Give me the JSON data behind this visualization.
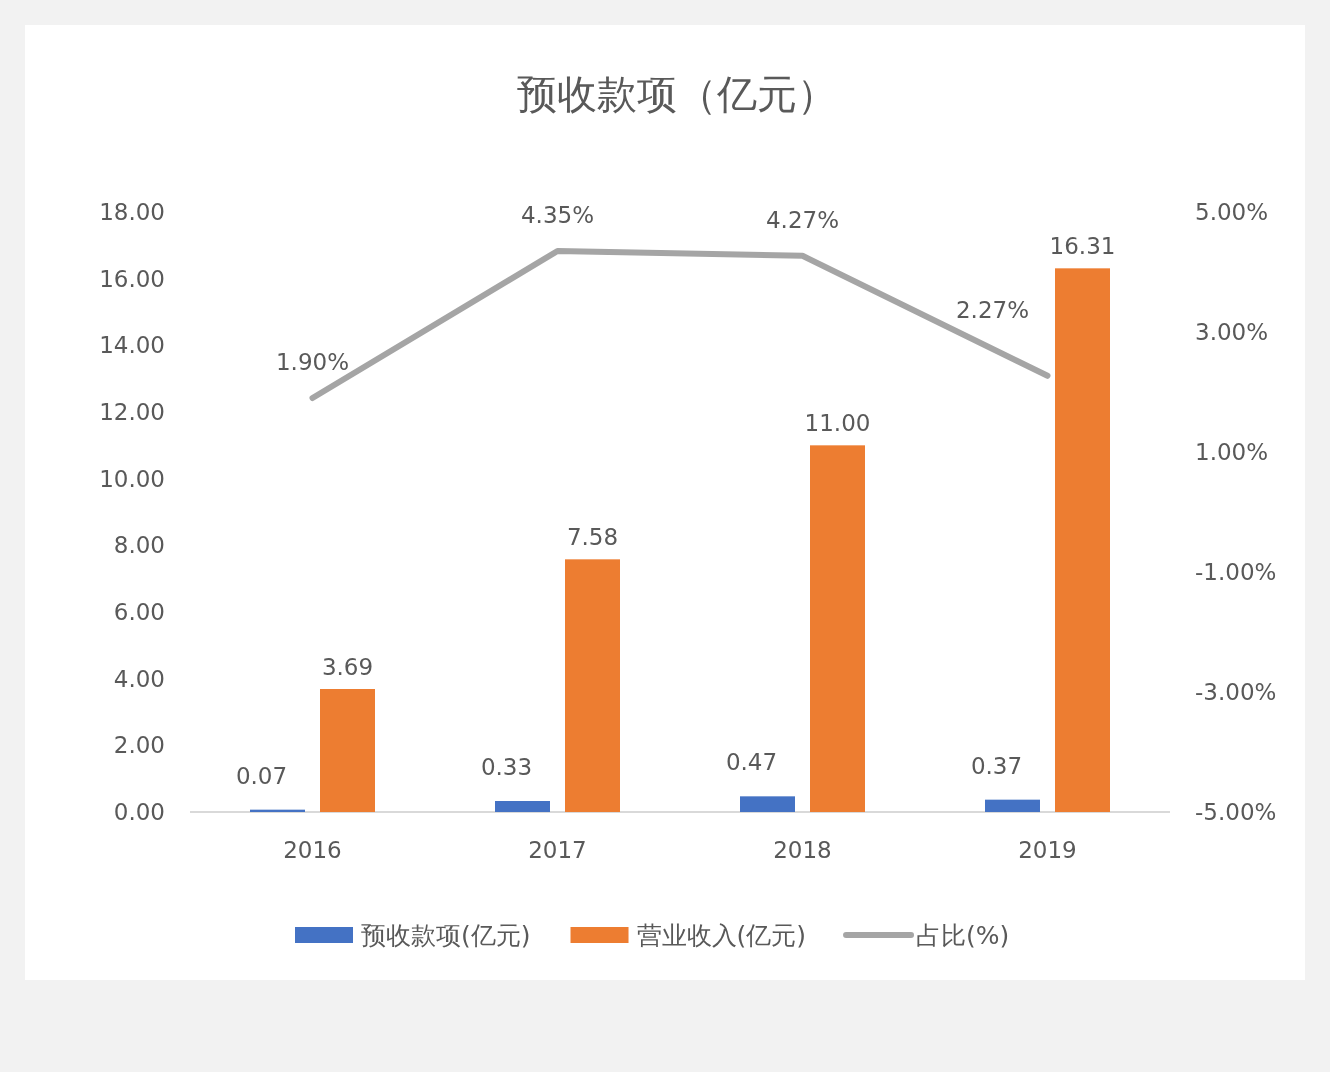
{
  "chart_data": {
    "type": "bar",
    "title": "预收款项（亿元）",
    "categories": [
      "2016",
      "2017",
      "2018",
      "2019"
    ],
    "series": [
      {
        "name": "预收款项(亿元)",
        "color": "#4472c4",
        "values": [
          0.07,
          0.33,
          0.47,
          0.37
        ],
        "value_labels": [
          "0.07",
          "0.33",
          "0.47",
          "0.37"
        ]
      },
      {
        "name": "营业收入(亿元)",
        "color": "#ed7d31",
        "values": [
          3.69,
          7.58,
          11.0,
          16.31
        ],
        "value_labels": [
          "3.69",
          "7.58",
          "11.00",
          "16.31"
        ]
      },
      {
        "name": "占比(%)",
        "type": "line",
        "axis": "y2",
        "color": "#a5a5a5",
        "values": [
          1.9,
          4.35,
          4.27,
          2.27
        ],
        "value_labels": [
          "1.90%",
          "4.35%",
          "4.27%",
          "2.27%"
        ]
      }
    ],
    "ylim": [
      0,
      18
    ],
    "yticks": [
      {
        "value": 0,
        "label": "0.00"
      },
      {
        "value": 2,
        "label": "2.00"
      },
      {
        "value": 4,
        "label": "4.00"
      },
      {
        "value": 6,
        "label": "6.00"
      },
      {
        "value": 8,
        "label": "8.00"
      },
      {
        "value": 10,
        "label": "10.00"
      },
      {
        "value": 12,
        "label": "12.00"
      },
      {
        "value": 14,
        "label": "14.00"
      },
      {
        "value": 16,
        "label": "16.00"
      },
      {
        "value": 18,
        "label": "18.00"
      }
    ],
    "y2lim": [
      -5,
      5
    ],
    "y2ticks": [
      {
        "value": -5,
        "label": "-5.00%"
      },
      {
        "value": -3,
        "label": "-3.00%"
      },
      {
        "value": -1,
        "label": "-1.00%"
      },
      {
        "value": 1,
        "label": "1.00%"
      },
      {
        "value": 3,
        "label": "3.00%"
      },
      {
        "value": 5,
        "label": "5.00%"
      }
    ],
    "grid": false,
    "legend": "bottom"
  }
}
